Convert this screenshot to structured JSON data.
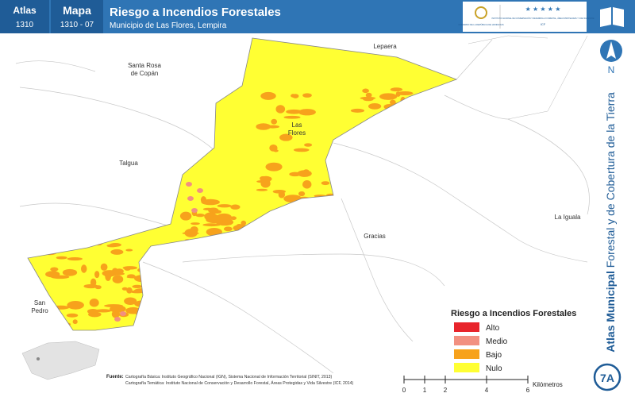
{
  "header": {
    "atlas_label": "Atlas",
    "atlas_code": "1310",
    "map_label": "Mapa",
    "map_code": "1310 - 07",
    "title": "Riesgo a Incendios Forestales",
    "subtitle": "Municipio de Las Flores, Lempira"
  },
  "logos": {
    "government": "GOBIERNO DE LA REPÚBLICA DE HONDURAS",
    "institute": "INSTITUTO NACIONAL DE CONSERVACIÓN Y DESARROLLO FORESTAL, ÁREAS PROTEGIDAS Y VIDA SILVESTRE",
    "institute_short": "ICF"
  },
  "north": "N",
  "side_title": {
    "bold": "Atlas Municipal",
    "rest": "Forestal y de Cobertura de la Tierra"
  },
  "places": {
    "lepaera": [
      "Lepaera"
    ],
    "santa_rosa": [
      "Santa Rosa",
      "de Copán"
    ],
    "las_flores": [
      "Las",
      "Flores"
    ],
    "talgua": [
      "Talgua"
    ],
    "gracias": [
      "Gracias"
    ],
    "la_iguala": [
      "La Iguala"
    ],
    "san_pedro": [
      "San",
      "Pedro"
    ]
  },
  "legend": {
    "title": "Riesgo a Incendios Forestales",
    "items": [
      {
        "label": "Alto",
        "color": "#e8242b"
      },
      {
        "label": "Medio",
        "color": "#f29080"
      },
      {
        "label": "Bajo",
        "color": "#f7a21c"
      },
      {
        "label": "Nulo",
        "color": "#ffff33"
      }
    ]
  },
  "source": {
    "label": "Fuente:",
    "lines": [
      "Cartografía Básica: Instituto Geográfico Nacional (IGN), Sistema Nacional de Información Territorial (SINIT, 2013)",
      "Cartografía Temática: Instituto Nacional de Conservación y Desarrollo Forestal, Áreas Protegidas y Vida Silvestre (ICF, 2014)"
    ]
  },
  "scale": {
    "ticks": [
      0,
      1,
      2,
      4,
      6
    ],
    "unit": "Kilómetros"
  },
  "page_id": "7A"
}
